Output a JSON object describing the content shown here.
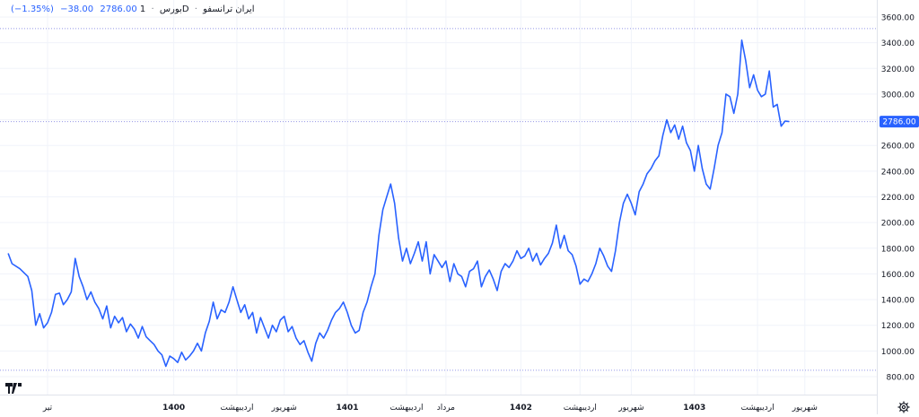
{
  "legend": {
    "symbol": "ایران ترانسفو",
    "interval": "1D",
    "exchange": "بورس",
    "last": "2786.00",
    "change": "−38.00",
    "change_pct": "(−1.35%)"
  },
  "price_tag": "2786.00",
  "colors": {
    "line": "#2962ff",
    "price_tag_bg": "#2962ff",
    "dotted": "#9598e6"
  },
  "icons": {
    "logo": "tradingview-logo-icon",
    "settings": "gear-icon"
  },
  "chart_data": {
    "type": "line",
    "title": "",
    "xlabel": "",
    "ylabel": "",
    "ylim": [
      780,
      3680
    ],
    "yticks": [
      800,
      1000,
      1200,
      1400,
      1600,
      1800,
      2000,
      2200,
      2400,
      2600,
      2800,
      3000,
      3200,
      3400,
      3600
    ],
    "ytick_labels": [
      "800.00",
      "1000.00",
      "1200.00",
      "1400.00",
      "1600.00",
      "1800.00",
      "2000.00",
      "2200.00",
      "2400.00",
      "2600.00",
      "2800.00",
      "3000.00",
      "3200.00",
      "3400.00",
      "3600.00"
    ],
    "xticks": [
      {
        "label": "تیر",
        "x": 0.5,
        "bold": false
      },
      {
        "label": "1400",
        "x": 16.5,
        "bold": true
      },
      {
        "label": "اردیبهشت",
        "x": 24.5,
        "bold": false
      },
      {
        "label": "شهریور",
        "x": 30.5,
        "bold": false
      },
      {
        "label": "1401",
        "x": 38.5,
        "bold": true
      },
      {
        "label": "اردیبهشت",
        "x": 46,
        "bold": false
      },
      {
        "label": "مرداد",
        "x": 51,
        "bold": false
      },
      {
        "label": "1402",
        "x": 60.5,
        "bold": true
      },
      {
        "label": "اردیبهشت",
        "x": 68,
        "bold": false
      },
      {
        "label": "شهریور",
        "x": 74.5,
        "bold": false
      },
      {
        "label": "1403",
        "x": 82.5,
        "bold": true
      },
      {
        "label": "اردیبهشت",
        "x": 90.5,
        "bold": false
      },
      {
        "label": "شهریور",
        "x": 96.5,
        "bold": false
      }
    ],
    "xlim": [
      -4.5,
      97.5
    ],
    "grid": true,
    "reference_lines": [
      3510,
      2786,
      850
    ],
    "series": [
      {
        "values": [
          [
            -4.5,
            1760
          ],
          [
            -4,
            1680
          ],
          [
            -3,
            1640
          ],
          [
            -2,
            1580
          ],
          [
            -1.5,
            1470
          ],
          [
            -1,
            1200
          ],
          [
            -0.5,
            1290
          ],
          [
            0,
            1180
          ],
          [
            0.5,
            1220
          ],
          [
            1,
            1300
          ],
          [
            1.5,
            1440
          ],
          [
            2,
            1450
          ],
          [
            2.5,
            1360
          ],
          [
            3,
            1400
          ],
          [
            3.5,
            1460
          ],
          [
            4,
            1720
          ],
          [
            4.5,
            1580
          ],
          [
            5,
            1500
          ],
          [
            5.5,
            1400
          ],
          [
            6,
            1460
          ],
          [
            6.5,
            1380
          ],
          [
            7,
            1330
          ],
          [
            7.5,
            1250
          ],
          [
            8,
            1350
          ],
          [
            8.5,
            1180
          ],
          [
            9,
            1270
          ],
          [
            9.5,
            1220
          ],
          [
            10,
            1260
          ],
          [
            10.5,
            1150
          ],
          [
            11,
            1210
          ],
          [
            11.5,
            1170
          ],
          [
            12,
            1100
          ],
          [
            12.5,
            1190
          ],
          [
            13,
            1110
          ],
          [
            13.5,
            1080
          ],
          [
            14,
            1050
          ],
          [
            14.5,
            1000
          ],
          [
            15,
            970
          ],
          [
            15.5,
            880
          ],
          [
            16,
            960
          ],
          [
            16.5,
            940
          ],
          [
            17,
            910
          ],
          [
            17.5,
            990
          ],
          [
            18,
            930
          ],
          [
            18.5,
            960
          ],
          [
            19,
            1000
          ],
          [
            19.5,
            1060
          ],
          [
            20,
            1000
          ],
          [
            20.5,
            1140
          ],
          [
            21,
            1230
          ],
          [
            21.5,
            1380
          ],
          [
            22,
            1250
          ],
          [
            22.5,
            1320
          ],
          [
            23,
            1300
          ],
          [
            23.5,
            1380
          ],
          [
            24,
            1500
          ],
          [
            24.5,
            1400
          ],
          [
            25,
            1300
          ],
          [
            25.5,
            1360
          ],
          [
            26,
            1250
          ],
          [
            26.5,
            1300
          ],
          [
            27,
            1140
          ],
          [
            27.5,
            1260
          ],
          [
            28,
            1180
          ],
          [
            28.5,
            1100
          ],
          [
            29,
            1200
          ],
          [
            29.5,
            1150
          ],
          [
            30,
            1240
          ],
          [
            30.5,
            1270
          ],
          [
            31,
            1150
          ],
          [
            31.5,
            1190
          ],
          [
            32,
            1100
          ],
          [
            32.5,
            1050
          ],
          [
            33,
            1080
          ],
          [
            33.5,
            990
          ],
          [
            34,
            920
          ],
          [
            34.5,
            1060
          ],
          [
            35,
            1140
          ],
          [
            35.5,
            1100
          ],
          [
            36,
            1160
          ],
          [
            36.5,
            1240
          ],
          [
            37,
            1300
          ],
          [
            37.5,
            1330
          ],
          [
            38,
            1380
          ],
          [
            38.5,
            1300
          ],
          [
            39,
            1200
          ],
          [
            39.5,
            1140
          ],
          [
            40,
            1160
          ],
          [
            40.5,
            1300
          ],
          [
            41,
            1380
          ],
          [
            41.5,
            1500
          ],
          [
            42,
            1600
          ],
          [
            42.5,
            1900
          ],
          [
            43,
            2100
          ],
          [
            43.5,
            2200
          ],
          [
            44,
            2300
          ],
          [
            44.5,
            2150
          ],
          [
            45,
            1880
          ],
          [
            45.5,
            1700
          ],
          [
            46,
            1800
          ],
          [
            46.5,
            1680
          ],
          [
            47,
            1760
          ],
          [
            47.5,
            1850
          ],
          [
            48,
            1700
          ],
          [
            48.5,
            1850
          ],
          [
            49,
            1600
          ],
          [
            49.5,
            1750
          ],
          [
            50,
            1700
          ],
          [
            50.5,
            1650
          ],
          [
            51,
            1700
          ],
          [
            51.5,
            1540
          ],
          [
            52,
            1680
          ],
          [
            52.5,
            1600
          ],
          [
            53,
            1580
          ],
          [
            53.5,
            1500
          ],
          [
            54,
            1620
          ],
          [
            54.5,
            1640
          ],
          [
            55,
            1700
          ],
          [
            55.5,
            1500
          ],
          [
            56,
            1580
          ],
          [
            56.5,
            1630
          ],
          [
            57,
            1560
          ],
          [
            57.5,
            1470
          ],
          [
            58,
            1620
          ],
          [
            58.5,
            1680
          ],
          [
            59,
            1650
          ],
          [
            59.5,
            1700
          ],
          [
            60,
            1780
          ],
          [
            60.5,
            1720
          ],
          [
            61,
            1740
          ],
          [
            61.5,
            1800
          ],
          [
            62,
            1700
          ],
          [
            62.5,
            1760
          ],
          [
            63,
            1670
          ],
          [
            63.5,
            1720
          ],
          [
            64,
            1760
          ],
          [
            64.5,
            1840
          ],
          [
            65,
            1980
          ],
          [
            65.5,
            1800
          ],
          [
            66,
            1900
          ],
          [
            66.5,
            1780
          ],
          [
            67,
            1750
          ],
          [
            67.5,
            1660
          ],
          [
            68,
            1520
          ],
          [
            68.5,
            1560
          ],
          [
            69,
            1540
          ],
          [
            69.5,
            1600
          ],
          [
            70,
            1680
          ],
          [
            70.5,
            1800
          ],
          [
            71,
            1740
          ],
          [
            71.5,
            1660
          ],
          [
            72,
            1620
          ],
          [
            72.5,
            1780
          ],
          [
            73,
            2000
          ],
          [
            73.5,
            2150
          ],
          [
            74,
            2220
          ],
          [
            74.5,
            2150
          ],
          [
            75,
            2060
          ],
          [
            75.5,
            2240
          ],
          [
            76,
            2300
          ],
          [
            76.5,
            2380
          ],
          [
            77,
            2420
          ],
          [
            77.5,
            2480
          ],
          [
            78,
            2520
          ],
          [
            78.5,
            2680
          ],
          [
            79,
            2800
          ],
          [
            79.5,
            2700
          ],
          [
            80,
            2760
          ],
          [
            80.5,
            2650
          ],
          [
            81,
            2750
          ],
          [
            81.5,
            2620
          ],
          [
            82,
            2560
          ],
          [
            82.5,
            2400
          ],
          [
            83,
            2600
          ],
          [
            83.5,
            2420
          ],
          [
            84,
            2300
          ],
          [
            84.5,
            2260
          ],
          [
            85,
            2420
          ],
          [
            85.5,
            2600
          ],
          [
            86,
            2700
          ],
          [
            86.5,
            3000
          ],
          [
            87,
            2980
          ],
          [
            87.5,
            2850
          ],
          [
            88,
            3000
          ],
          [
            88.5,
            3420
          ],
          [
            89,
            3260
          ],
          [
            89.5,
            3050
          ],
          [
            90,
            3150
          ],
          [
            90.5,
            3030
          ],
          [
            91,
            2980
          ],
          [
            91.5,
            3000
          ],
          [
            92,
            3180
          ],
          [
            92.5,
            2900
          ],
          [
            93,
            2920
          ],
          [
            93.5,
            2750
          ],
          [
            94,
            2790
          ],
          [
            94.5,
            2786
          ]
        ]
      }
    ]
  }
}
